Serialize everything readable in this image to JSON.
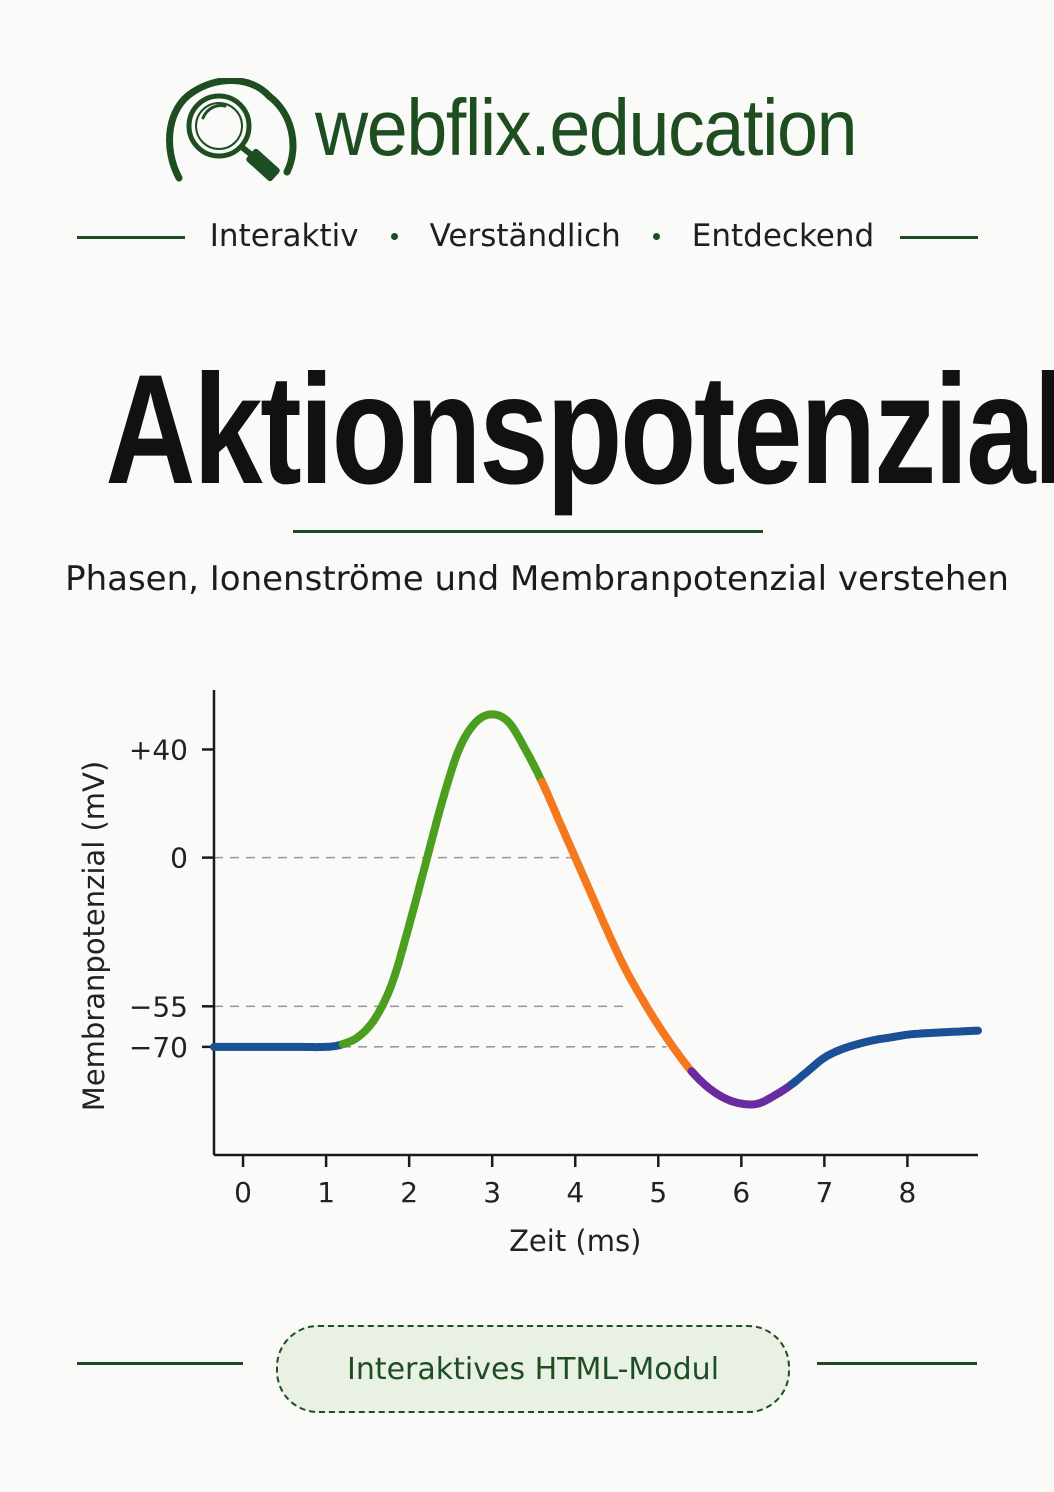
{
  "brand": {
    "name": "webflix.education",
    "color": "#1e4d22"
  },
  "tags": [
    "Interaktiv",
    "Verständlich",
    "Entdeckend"
  ],
  "title": "Aktionspotenzial",
  "subtitle": "Phasen, Ionenströme und Membranpotenzial verstehen",
  "badge": "Interaktives HTML-Modul",
  "chart_data": {
    "type": "line",
    "xlabel": "Zeit (ms)",
    "ylabel": "Membranpotenzial (mV)",
    "xlim": [
      -0.35,
      8.85
    ],
    "ylim": [
      -110,
      62
    ],
    "x_ticks": [
      0,
      1,
      2,
      3,
      4,
      5,
      6,
      7,
      8
    ],
    "y_ticks": [
      {
        "value": 40,
        "label": "+40"
      },
      {
        "value": 0,
        "label": "0"
      },
      {
        "value": -55,
        "label": "−55"
      },
      {
        "value": -70,
        "label": "−70"
      }
    ],
    "reference_lines": [
      0,
      -55,
      -70
    ],
    "grid": false,
    "legend": "none",
    "x": [
      -0.35,
      0.2,
      0.6,
      1.0,
      1.2,
      1.4,
      1.6,
      1.8,
      2.0,
      2.2,
      2.4,
      2.6,
      2.8,
      3.0,
      3.2,
      3.4,
      3.6,
      3.8,
      4.0,
      4.2,
      4.4,
      4.6,
      4.8,
      5.0,
      5.2,
      5.4,
      5.6,
      5.8,
      6.0,
      6.2,
      6.4,
      6.6,
      6.8,
      7.0,
      7.2,
      7.4,
      7.6,
      7.8,
      8.0,
      8.2,
      8.5,
      8.85
    ],
    "y": [
      -70,
      -70,
      -70,
      -70,
      -69,
      -66,
      -59,
      -46,
      -25,
      -2,
      21,
      40,
      50,
      53,
      50,
      40,
      28,
      14,
      0,
      -14,
      -28,
      -41,
      -52,
      -62,
      -71,
      -79,
      -85,
      -89,
      -91,
      -91,
      -88,
      -84,
      -79,
      -74,
      -71,
      -69,
      -67.5,
      -66.5,
      -65.5,
      -65,
      -64.5,
      -64
    ],
    "phases": [
      {
        "from": -0.35,
        "to": 1.2,
        "color": "#1b4f96"
      },
      {
        "from": 1.2,
        "to": 3.6,
        "color": "#4c9e1e"
      },
      {
        "from": 3.6,
        "to": 5.4,
        "color": "#f5781e"
      },
      {
        "from": 5.4,
        "to": 6.6,
        "color": "#6a2aa0"
      },
      {
        "from": 6.6,
        "to": 8.85,
        "color": "#1b4f96"
      }
    ]
  }
}
